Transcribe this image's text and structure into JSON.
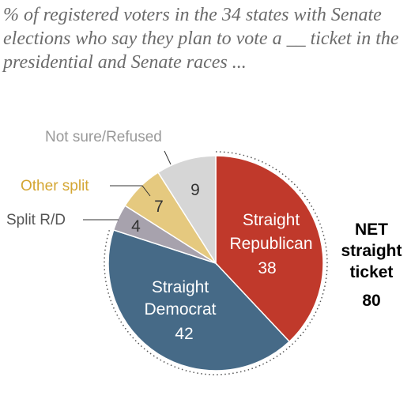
{
  "chart_data": {
    "type": "pie",
    "subtitle": "% of registered voters in the 34 states with Senate elections who say they plan to vote a __ ticket in the presidential and Senate races ...",
    "slices": [
      {
        "label": "Straight Republican",
        "label_lines": [
          "Straight",
          "Republican"
        ],
        "value": 38,
        "color": "#c0392b",
        "label_pos": "inside",
        "text_color": "#ffffff"
      },
      {
        "label": "Straight Democrat",
        "label_lines": [
          "Straight",
          "Democrat"
        ],
        "value": 42,
        "color": "#466a87",
        "label_pos": "inside",
        "text_color": "#ffffff"
      },
      {
        "label": "Split R/D",
        "label_lines": [
          "Split R/D"
        ],
        "value": 4,
        "color": "#a7a2ad",
        "label_pos": "outside",
        "text_color": "#555555"
      },
      {
        "label": "Other split",
        "label_lines": [
          "Other split"
        ],
        "value": 7,
        "color": "#e5c97f",
        "label_pos": "outside",
        "text_color": "#d4a632"
      },
      {
        "label": "Not sure/Refused",
        "label_lines": [
          "Not sure/Refused"
        ],
        "value": 9,
        "color": "#d6d6d6",
        "label_pos": "outside",
        "text_color": "#999999"
      }
    ],
    "net_annotation": {
      "label_lines": [
        "NET",
        "straight",
        "ticket"
      ],
      "value": 80
    }
  }
}
